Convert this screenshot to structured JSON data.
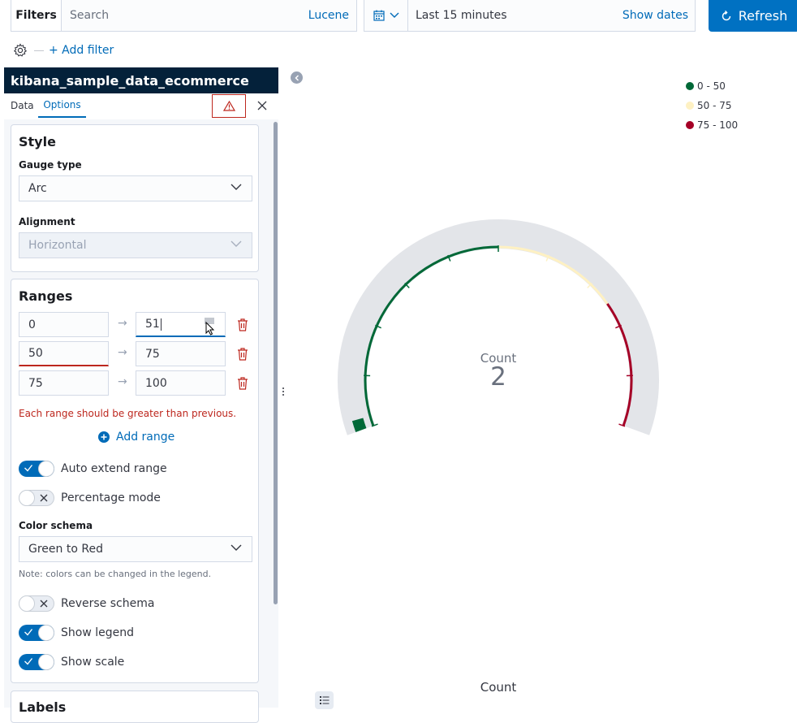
{
  "query_bar": {
    "filters_label": "Filters",
    "search_placeholder": "Search",
    "language_link": "Lucene",
    "time_range": "Last 15 minutes",
    "show_dates": "Show dates",
    "refresh_label": "Refresh",
    "add_filter": "+ Add filter"
  },
  "sidebar": {
    "index_pattern": "kibana_sample_data_ecommerce",
    "tabs": [
      {
        "label": "Data",
        "active": false
      },
      {
        "label": "Options",
        "active": true
      }
    ],
    "style": {
      "title": "Style",
      "gauge_type_label": "Gauge type",
      "gauge_type_value": "Arc",
      "alignment_label": "Alignment",
      "alignment_value": "Horizontal"
    },
    "ranges": {
      "title": "Ranges",
      "rows": [
        {
          "from": "0",
          "to": "51"
        },
        {
          "from": "50",
          "to": "75"
        },
        {
          "from": "75",
          "to": "100"
        }
      ],
      "error": "Each range should be greater than previous.",
      "add_range": "Add range"
    },
    "toggles": {
      "auto_extend": {
        "label": "Auto extend range",
        "on": true
      },
      "percentage_mode": {
        "label": "Percentage mode",
        "on": false
      },
      "reverse_schema": {
        "label": "Reverse schema",
        "on": false
      },
      "show_legend": {
        "label": "Show legend",
        "on": true
      },
      "show_scale": {
        "label": "Show scale",
        "on": true
      }
    },
    "color_schema": {
      "label": "Color schema",
      "value": "Green to Red",
      "note": "Note: colors can be changed in the legend."
    },
    "labels_title": "Labels"
  },
  "colors": {
    "accent": "#006bb8",
    "danger": "#bd271e",
    "green": "#006837",
    "yellow": "#fef1c3",
    "red": "#a50026"
  },
  "chart_data": {
    "type": "gauge",
    "gauge_type": "Arc",
    "value": 2,
    "label": "Count",
    "axis_title": "Count",
    "ranges": [
      {
        "from": 0,
        "to": 50,
        "label": "0 - 50",
        "color": "#006837"
      },
      {
        "from": 50,
        "to": 75,
        "label": "50 - 75",
        "color": "#fef1c3"
      },
      {
        "from": 75,
        "to": 100,
        "label": "75 - 100",
        "color": "#a50026"
      }
    ],
    "min": 0,
    "max": 100,
    "legend_position": "top-right",
    "show_scale": true
  }
}
